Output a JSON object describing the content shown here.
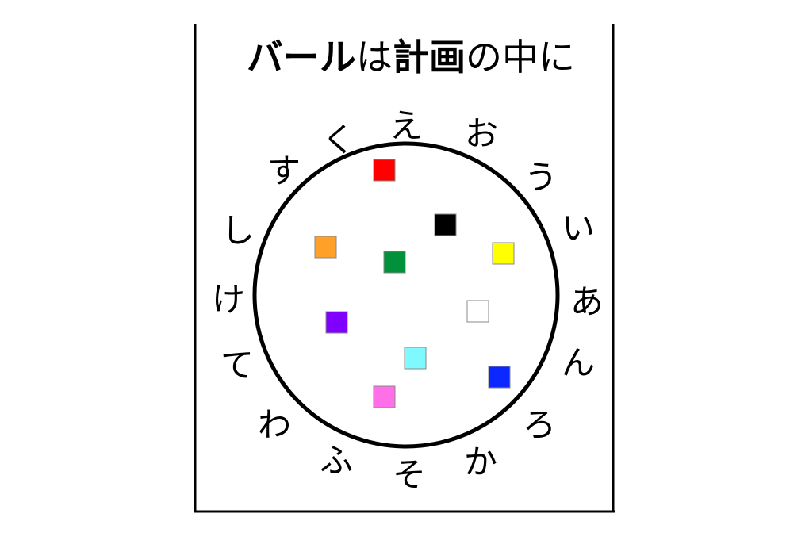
{
  "title": {
    "segments": [
      {
        "text": "バール",
        "bold": true
      },
      {
        "text": "は",
        "bold": false
      },
      {
        "text": "計画",
        "bold": true
      },
      {
        "text": "の中に",
        "bold": false
      }
    ]
  },
  "ring_labels": [
    "え",
    "お",
    "う",
    "い",
    "あ",
    "ん",
    "ろ",
    "か",
    "そ",
    "ふ",
    "わ",
    "て",
    "け",
    "し",
    "す",
    "く"
  ],
  "squares": [
    {
      "color": "red",
      "fill": "#ff0000"
    },
    {
      "color": "black",
      "fill": "#000000"
    },
    {
      "color": "orange",
      "fill": "#ffa028"
    },
    {
      "color": "yellow",
      "fill": "#ffff00"
    },
    {
      "color": "green",
      "fill": "#00913a"
    },
    {
      "color": "white",
      "fill": "#ffffff"
    },
    {
      "color": "purple",
      "fill": "#8000ff"
    },
    {
      "color": "cyan",
      "fill": "#80f8ff"
    },
    {
      "color": "blue",
      "fill": "#0a28ff"
    },
    {
      "color": "pink",
      "fill": "#ff70e8"
    }
  ]
}
